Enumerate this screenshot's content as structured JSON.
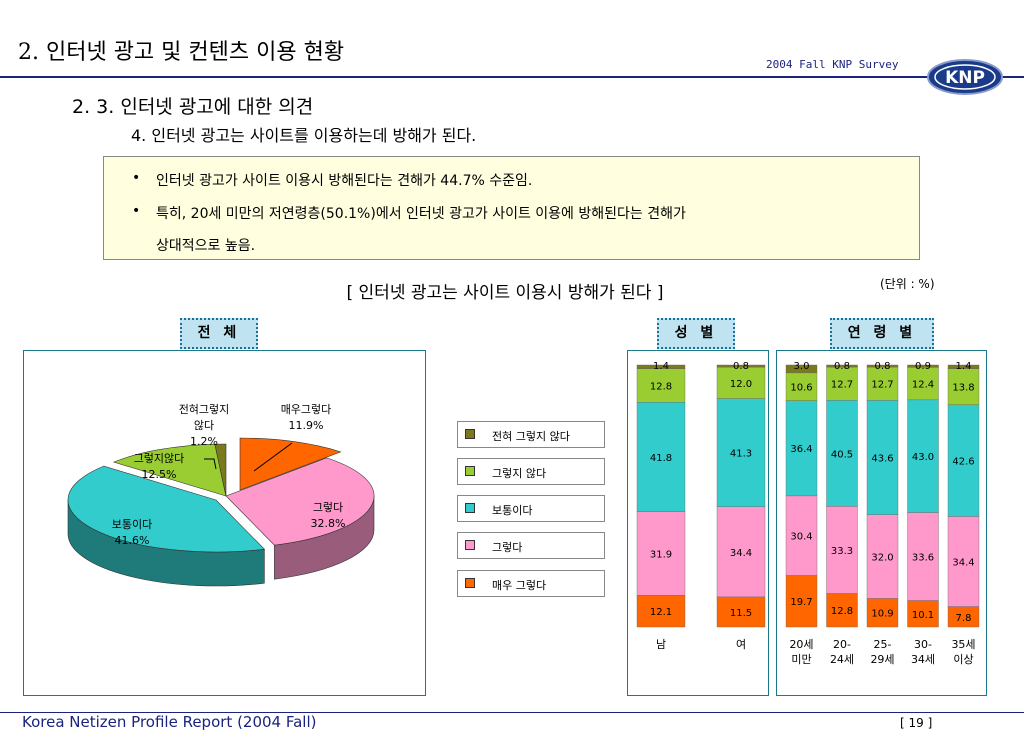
{
  "header": {
    "title": "2. 인터넷 광고 및 컨텐츠 이용 현황",
    "survey": "2004 Fall KNP Survey",
    "logo_text": "KNP"
  },
  "section_heading": "2. 3. 인터넷 광고에 대한 의견",
  "sub_heading": "4. 인터넷 광고는 사이트를 이용하는데 방해가 된다.",
  "summary": {
    "bullet1": "인터넷 광고가 사이트 이용시 방해된다는 견해가 44.7% 수준임.",
    "bullet2": "특히, 20세 미만의 저연령층(50.1%)에서 인터넷 광고가 사이트 이용에 방해된다는 견해가",
    "bullet2_cont": "상대적으로 높음.",
    "bullet_mark": "•"
  },
  "chart_title": "[ 인터넷 광고는 사이트 이용시 방해가 된다 ]",
  "unit_note": "(단위 : %)",
  "tags": {
    "total": "전 체",
    "gender": "성 별",
    "age": "연 령 별"
  },
  "legend": [
    {
      "label": "전혀 그렇지 않다",
      "color": "#7a7a1c"
    },
    {
      "label": "그렇지 않다",
      "color": "#9acd32"
    },
    {
      "label": "보통이다",
      "color": "#33cccc"
    },
    {
      "label": "그렇다",
      "color": "#ff99cc"
    },
    {
      "label": "매우 그렇다",
      "color": "#ff6600"
    }
  ],
  "chart_data": [
    {
      "type": "pie",
      "name": "전 체",
      "slices": [
        {
          "label": "매우그렇다",
          "value": 11.9,
          "label_text": "11.9%",
          "color": "#ff6600"
        },
        {
          "label": "그렇다",
          "value": 32.8,
          "label_text": "32.8%",
          "color": "#ff99cc"
        },
        {
          "label": "보통이다",
          "value": 41.6,
          "label_text": "41.6%",
          "color": "#33cccc"
        },
        {
          "label": "그렇지않다",
          "value": 12.5,
          "label_text": "12.5%",
          "color": "#9acd32"
        },
        {
          "label": "전혀그렇지 않다",
          "value": 1.2,
          "label_text": "1.2%",
          "color": "#7a7a1c"
        }
      ]
    },
    {
      "type": "bar",
      "stacked": true,
      "name": "성 별",
      "categories": [
        "남",
        "여"
      ],
      "series": [
        {
          "name": "매우 그렇다",
          "values": [
            12.1,
            11.5
          ],
          "color": "#ff6600"
        },
        {
          "name": "그렇다",
          "values": [
            31.9,
            34.4
          ],
          "color": "#ff99cc"
        },
        {
          "name": "보통이다",
          "values": [
            41.8,
            41.3
          ],
          "color": "#33cccc"
        },
        {
          "name": "그렇지 않다",
          "values": [
            12.8,
            12.0
          ],
          "color": "#9acd32"
        },
        {
          "name": "전혀 그렇지 않다",
          "values": [
            1.4,
            0.8
          ],
          "color": "#7a7a1c"
        }
      ]
    },
    {
      "type": "bar",
      "stacked": true,
      "name": "연 령 별",
      "categories": [
        [
          "20세",
          "미만"
        ],
        [
          "20-",
          "24세"
        ],
        [
          "25-",
          "29세"
        ],
        [
          "30-",
          "34세"
        ],
        [
          "35세",
          "이상"
        ]
      ],
      "series": [
        {
          "name": "매우 그렇다",
          "values": [
            19.7,
            12.8,
            10.9,
            10.1,
            7.8
          ],
          "color": "#ff6600"
        },
        {
          "name": "그렇다",
          "values": [
            30.4,
            33.3,
            32.0,
            33.6,
            34.4
          ],
          "color": "#ff99cc"
        },
        {
          "name": "보통이다",
          "values": [
            36.4,
            40.5,
            43.6,
            43.0,
            42.6
          ],
          "color": "#33cccc"
        },
        {
          "name": "그렇지 않다",
          "values": [
            10.6,
            12.7,
            12.7,
            12.4,
            13.8
          ],
          "color": "#9acd32"
        },
        {
          "name": "전혀 그렇지 않다",
          "values": [
            3.0,
            0.8,
            0.8,
            0.9,
            1.4
          ],
          "color": "#7a7a1c"
        }
      ]
    }
  ],
  "footer": {
    "left": "Korea Netizen Profile Report (2004 Fall)",
    "page": "[ 19 ]"
  }
}
